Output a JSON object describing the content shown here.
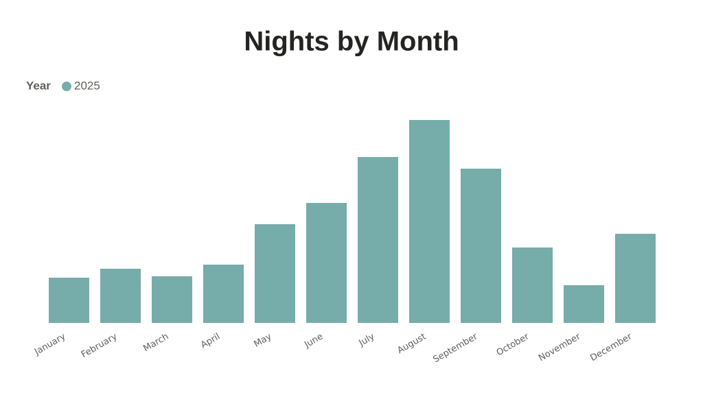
{
  "chart_data": {
    "type": "bar",
    "title": "Nights by Month",
    "legend_title": "Year",
    "categories": [
      "January",
      "February",
      "March",
      "April",
      "May",
      "June",
      "July",
      "August",
      "September",
      "October",
      "November",
      "December"
    ],
    "series": [
      {
        "name": "2025",
        "color": "#76acaa",
        "values": [
          66,
          79,
          68,
          85,
          144,
          175,
          242,
          296,
          225,
          110,
          55,
          130
        ]
      }
    ]
  }
}
